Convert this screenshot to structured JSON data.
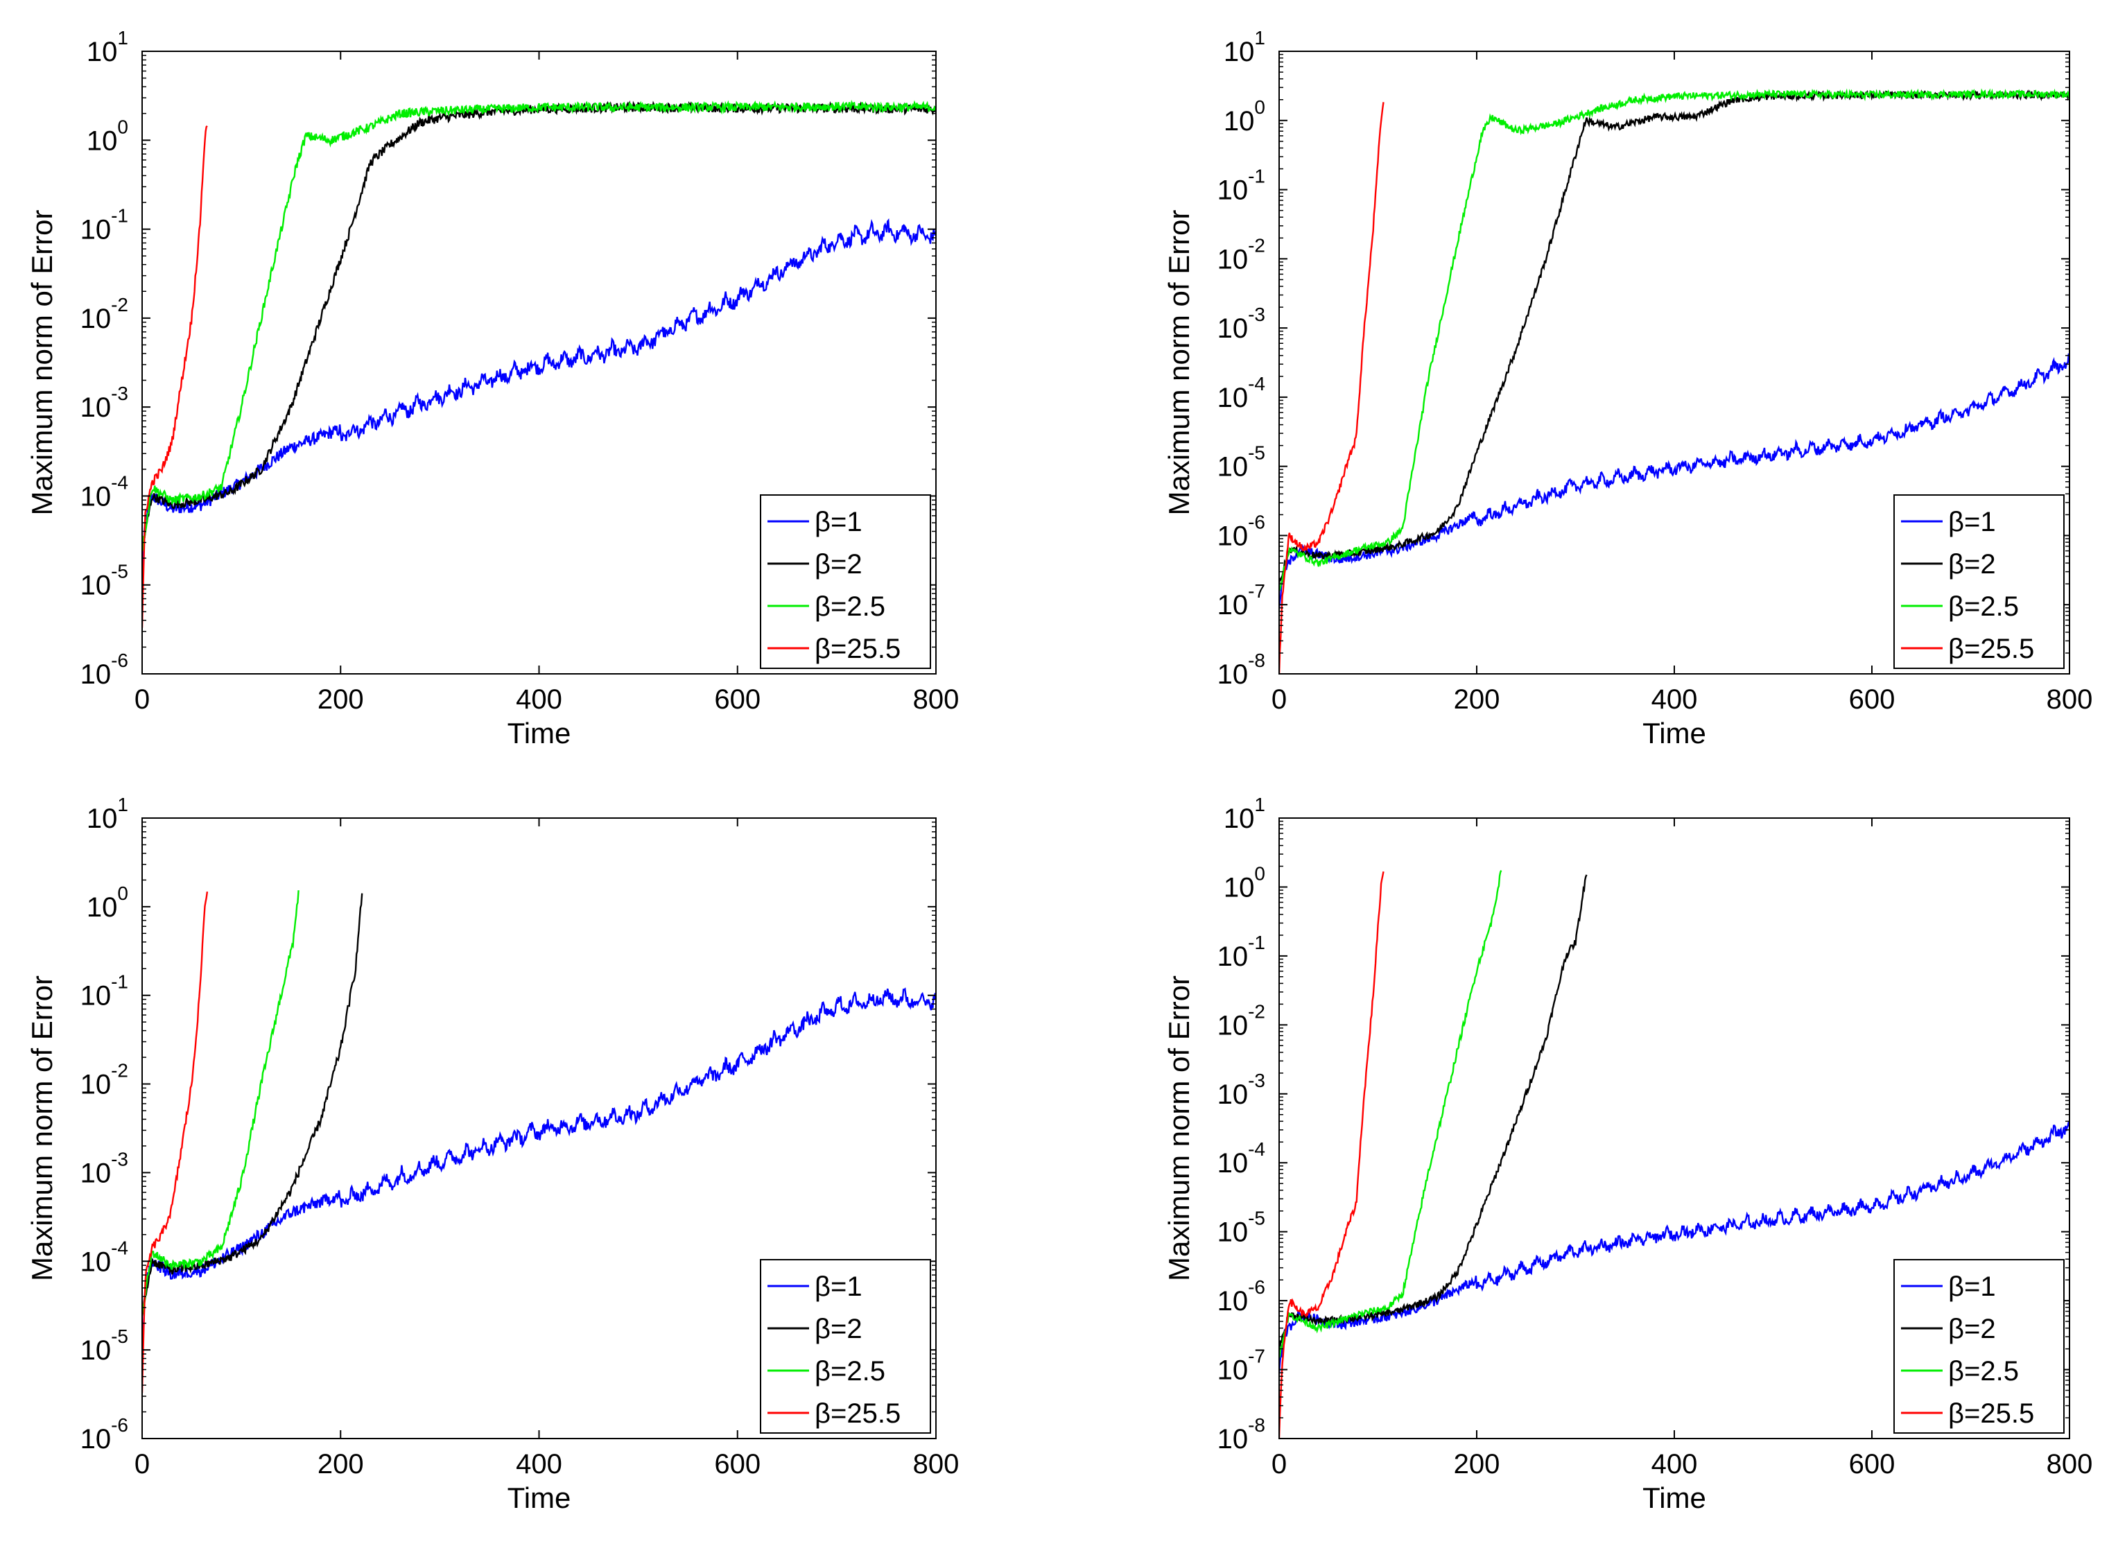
{
  "chart_data": [
    {
      "type": "line",
      "xlabel": "Time",
      "ylabel": "Maximum norm of Error",
      "x_ticks": [
        "0",
        "200",
        "400",
        "600",
        "800"
      ],
      "xlim": [
        0,
        800
      ],
      "y_scale": "log",
      "ylim_exponents": [
        -6,
        1
      ],
      "y_tick_exponents": [
        "-6",
        "-5",
        "-4",
        "-3",
        "-2",
        "-1",
        "0",
        "1"
      ],
      "legend_position": "bottom-right",
      "series": [
        {
          "name": "β=1",
          "color": "#0000ff",
          "points": [
            [
              0,
              -5.0
            ],
            [
              3,
              -4.3
            ],
            [
              10,
              -4.0
            ],
            [
              30,
              -4.15
            ],
            [
              60,
              -4.1
            ],
            [
              100,
              -3.85
            ],
            [
              150,
              -3.45
            ],
            [
              200,
              -3.25
            ],
            [
              300,
              -2.8
            ],
            [
              400,
              -2.45
            ],
            [
              500,
              -2.25
            ],
            [
              550,
              -1.95
            ],
            [
              600,
              -1.7
            ],
            [
              650,
              -1.35
            ],
            [
              700,
              -1.05
            ],
            [
              750,
              -0.95
            ],
            [
              800,
              -1.0
            ]
          ]
        },
        {
          "name": "β=2",
          "color": "#000000",
          "points": [
            [
              0,
              -4.6
            ],
            [
              10,
              -4.0
            ],
            [
              30,
              -4.1
            ],
            [
              60,
              -4.05
            ],
            [
              90,
              -3.95
            ],
            [
              120,
              -3.7
            ],
            [
              150,
              -3.0
            ],
            [
              180,
              -2.0
            ],
            [
              210,
              -1.0
            ],
            [
              230,
              -0.25
            ],
            [
              250,
              -0.05
            ],
            [
              280,
              0.2
            ],
            [
              300,
              0.25
            ],
            [
              350,
              0.32
            ],
            [
              400,
              0.35
            ],
            [
              500,
              0.37
            ],
            [
              600,
              0.36
            ],
            [
              700,
              0.36
            ],
            [
              800,
              0.35
            ]
          ]
        },
        {
          "name": "β=2.5",
          "color": "#00ee00",
          "points": [
            [
              0,
              -4.6
            ],
            [
              10,
              -3.9
            ],
            [
              30,
              -4.05
            ],
            [
              60,
              -4.0
            ],
            [
              80,
              -3.9
            ],
            [
              100,
              -3.0
            ],
            [
              130,
              -1.5
            ],
            [
              155,
              -0.3
            ],
            [
              165,
              0.05
            ],
            [
              190,
              0.0
            ],
            [
              230,
              0.15
            ],
            [
              260,
              0.3
            ],
            [
              300,
              0.33
            ],
            [
              400,
              0.37
            ],
            [
              500,
              0.37
            ],
            [
              600,
              0.37
            ],
            [
              700,
              0.38
            ],
            [
              800,
              0.37
            ]
          ]
        },
        {
          "name": "β=25.5",
          "color": "#ff0000",
          "points": [
            [
              0,
              -5.5
            ],
            [
              3,
              -4.2
            ],
            [
              10,
              -3.85
            ],
            [
              20,
              -3.7
            ],
            [
              30,
              -3.4
            ],
            [
              40,
              -2.7
            ],
            [
              50,
              -2.0
            ],
            [
              58,
              -1.0
            ],
            [
              63,
              0.0
            ],
            [
              66,
              0.2
            ]
          ]
        }
      ]
    },
    {
      "type": "line",
      "xlabel": "Time",
      "ylabel": "Maximum norm of Error",
      "x_ticks": [
        "0",
        "200",
        "400",
        "600",
        "800"
      ],
      "xlim": [
        0,
        800
      ],
      "y_scale": "log",
      "ylim_exponents": [
        -8,
        1
      ],
      "y_tick_exponents": [
        "-8",
        "-7",
        "-6",
        "-5",
        "-4",
        "-3",
        "-2",
        "-1",
        "0",
        "1"
      ],
      "legend_position": "bottom-right",
      "series": [
        {
          "name": "β=1",
          "color": "#0000ff",
          "points": [
            [
              0,
              -7.0
            ],
            [
              5,
              -6.5
            ],
            [
              20,
              -6.2
            ],
            [
              60,
              -6.35
            ],
            [
              120,
              -6.2
            ],
            [
              160,
              -6.0
            ],
            [
              200,
              -5.7
            ],
            [
              300,
              -5.2
            ],
            [
              400,
              -4.95
            ],
            [
              500,
              -4.75
            ],
            [
              600,
              -4.55
            ],
            [
              700,
              -4.1
            ],
            [
              760,
              -3.7
            ],
            [
              800,
              -3.4
            ]
          ]
        },
        {
          "name": "β=2",
          "color": "#000000",
          "points": [
            [
              0,
              -6.7
            ],
            [
              10,
              -6.2
            ],
            [
              40,
              -6.3
            ],
            [
              80,
              -6.25
            ],
            [
              120,
              -6.15
            ],
            [
              160,
              -5.95
            ],
            [
              180,
              -5.6
            ],
            [
              200,
              -4.8
            ],
            [
              240,
              -3.3
            ],
            [
              270,
              -2.0
            ],
            [
              290,
              -1.0
            ],
            [
              310,
              0.0
            ],
            [
              340,
              -0.1
            ],
            [
              380,
              0.05
            ],
            [
              420,
              0.05
            ],
            [
              460,
              0.3
            ],
            [
              500,
              0.35
            ],
            [
              600,
              0.37
            ],
            [
              700,
              0.37
            ],
            [
              800,
              0.37
            ]
          ]
        },
        {
          "name": "β=2.5",
          "color": "#00ee00",
          "points": [
            [
              0,
              -6.8
            ],
            [
              10,
              -6.2
            ],
            [
              40,
              -6.4
            ],
            [
              80,
              -6.2
            ],
            [
              110,
              -6.1
            ],
            [
              125,
              -5.9
            ],
            [
              150,
              -3.8
            ],
            [
              180,
              -1.8
            ],
            [
              205,
              -0.2
            ],
            [
              215,
              0.05
            ],
            [
              240,
              -0.15
            ],
            [
              280,
              -0.05
            ],
            [
              320,
              0.15
            ],
            [
              360,
              0.3
            ],
            [
              400,
              0.35
            ],
            [
              500,
              0.38
            ],
            [
              600,
              0.37
            ],
            [
              700,
              0.38
            ],
            [
              800,
              0.38
            ]
          ]
        },
        {
          "name": "β=25.5",
          "color": "#ff0000",
          "points": [
            [
              0,
              -8.0
            ],
            [
              3,
              -6.9
            ],
            [
              10,
              -6.0
            ],
            [
              25,
              -6.2
            ],
            [
              40,
              -6.1
            ],
            [
              55,
              -5.6
            ],
            [
              70,
              -4.9
            ],
            [
              78,
              -4.6
            ],
            [
              85,
              -3.2
            ],
            [
              95,
              -1.6
            ],
            [
              103,
              0.0
            ],
            [
              106,
              0.3
            ]
          ]
        }
      ]
    },
    {
      "type": "line",
      "xlabel": "Time",
      "ylabel": "Maximum norm of Error",
      "x_ticks": [
        "0",
        "200",
        "400",
        "600",
        "800"
      ],
      "xlim": [
        0,
        800
      ],
      "y_scale": "log",
      "ylim_exponents": [
        -6,
        1
      ],
      "y_tick_exponents": [
        "-6",
        "-5",
        "-4",
        "-3",
        "-2",
        "-1",
        "0",
        "1"
      ],
      "legend_position": "bottom-right",
      "series": [
        {
          "name": "β=1",
          "color": "#0000ff",
          "points": [
            [
              0,
              -5.0
            ],
            [
              3,
              -4.3
            ],
            [
              10,
              -4.0
            ],
            [
              30,
              -4.15
            ],
            [
              60,
              -4.1
            ],
            [
              100,
              -3.85
            ],
            [
              150,
              -3.45
            ],
            [
              200,
              -3.25
            ],
            [
              300,
              -2.8
            ],
            [
              400,
              -2.45
            ],
            [
              500,
              -2.25
            ],
            [
              550,
              -1.95
            ],
            [
              600,
              -1.7
            ],
            [
              650,
              -1.35
            ],
            [
              700,
              -1.05
            ],
            [
              750,
              -0.95
            ],
            [
              800,
              -1.0
            ]
          ]
        },
        {
          "name": "β=2",
          "color": "#000000",
          "points": [
            [
              0,
              -4.6
            ],
            [
              10,
              -4.0
            ],
            [
              30,
              -4.1
            ],
            [
              60,
              -4.05
            ],
            [
              90,
              -3.95
            ],
            [
              120,
              -3.75
            ],
            [
              150,
              -3.2
            ],
            [
              180,
              -2.4
            ],
            [
              200,
              -1.6
            ],
            [
              215,
              -0.7
            ],
            [
              222,
              0.2
            ]
          ]
        },
        {
          "name": "β=2.5",
          "color": "#00ee00",
          "points": [
            [
              0,
              -4.6
            ],
            [
              10,
              -3.9
            ],
            [
              30,
              -4.05
            ],
            [
              60,
              -4.0
            ],
            [
              80,
              -3.85
            ],
            [
              100,
              -3.1
            ],
            [
              120,
              -2.0
            ],
            [
              140,
              -1.0
            ],
            [
              152,
              -0.4
            ],
            [
              158,
              0.2
            ]
          ]
        },
        {
          "name": "β=25.5",
          "color": "#ff0000",
          "points": [
            [
              0,
              -5.5
            ],
            [
              3,
              -4.2
            ],
            [
              10,
              -3.85
            ],
            [
              20,
              -3.7
            ],
            [
              30,
              -3.4
            ],
            [
              40,
              -2.7
            ],
            [
              50,
              -2.0
            ],
            [
              58,
              -1.0
            ],
            [
              63,
              0.0
            ],
            [
              66,
              0.2
            ]
          ]
        }
      ]
    },
    {
      "type": "line",
      "xlabel": "Time",
      "ylabel": "Maximum norm of Error",
      "x_ticks": [
        "0",
        "200",
        "400",
        "600",
        "800"
      ],
      "xlim": [
        0,
        800
      ],
      "y_scale": "log",
      "ylim_exponents": [
        -8,
        1
      ],
      "y_tick_exponents": [
        "-8",
        "-7",
        "-6",
        "-5",
        "-4",
        "-3",
        "-2",
        "-1",
        "0",
        "1"
      ],
      "legend_position": "bottom-right",
      "series": [
        {
          "name": "β=1",
          "color": "#0000ff",
          "points": [
            [
              0,
              -7.0
            ],
            [
              5,
              -6.5
            ],
            [
              20,
              -6.2
            ],
            [
              60,
              -6.35
            ],
            [
              120,
              -6.2
            ],
            [
              160,
              -6.0
            ],
            [
              200,
              -5.7
            ],
            [
              300,
              -5.2
            ],
            [
              400,
              -4.95
            ],
            [
              500,
              -4.75
            ],
            [
              600,
              -4.55
            ],
            [
              700,
              -4.1
            ],
            [
              760,
              -3.7
            ],
            [
              800,
              -3.4
            ]
          ]
        },
        {
          "name": "β=2",
          "color": "#000000",
          "points": [
            [
              0,
              -6.7
            ],
            [
              10,
              -6.2
            ],
            [
              40,
              -6.3
            ],
            [
              80,
              -6.25
            ],
            [
              120,
              -6.15
            ],
            [
              160,
              -5.95
            ],
            [
              180,
              -5.6
            ],
            [
              200,
              -4.9
            ],
            [
              240,
              -3.4
            ],
            [
              270,
              -2.2
            ],
            [
              290,
              -1.0
            ],
            [
              300,
              -0.8
            ],
            [
              312,
              0.3
            ]
          ]
        },
        {
          "name": "β=2.5",
          "color": "#00ee00",
          "points": [
            [
              0,
              -6.8
            ],
            [
              10,
              -6.2
            ],
            [
              40,
              -6.4
            ],
            [
              80,
              -6.2
            ],
            [
              110,
              -6.1
            ],
            [
              125,
              -5.9
            ],
            [
              150,
              -4.2
            ],
            [
              180,
              -2.4
            ],
            [
              200,
              -1.2
            ],
            [
              215,
              -0.5
            ],
            [
              225,
              0.25
            ]
          ]
        },
        {
          "name": "β=25.5",
          "color": "#ff0000",
          "points": [
            [
              0,
              -8.0
            ],
            [
              3,
              -6.9
            ],
            [
              10,
              -6.0
            ],
            [
              25,
              -6.2
            ],
            [
              40,
              -6.1
            ],
            [
              55,
              -5.6
            ],
            [
              70,
              -4.9
            ],
            [
              78,
              -4.6
            ],
            [
              85,
              -3.2
            ],
            [
              95,
              -1.6
            ],
            [
              103,
              0.0
            ],
            [
              106,
              0.3
            ]
          ]
        }
      ]
    }
  ]
}
